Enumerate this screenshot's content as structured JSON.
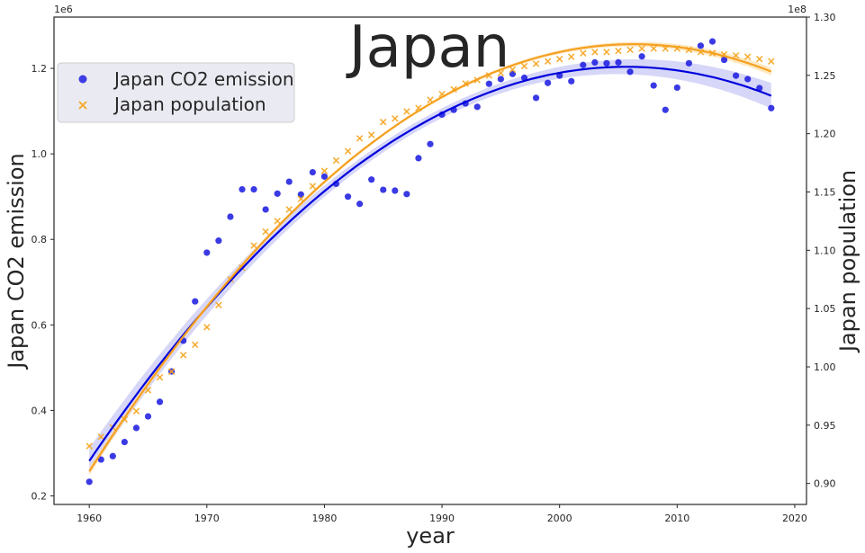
{
  "chart_data": {
    "type": "scatter",
    "title": "Japan",
    "xlabel": "year",
    "ylabel_left": "Japan  CO2 emission",
    "ylabel_right": "Japan  population",
    "left_multiplier": "1e6",
    "right_multiplier": "1e8",
    "xlim": [
      1957,
      2021
    ],
    "ylim_left": [
      0.18,
      1.32
    ],
    "ylim_right": [
      0.882,
      1.3
    ],
    "x_ticks": [
      1960,
      1970,
      1980,
      1990,
      2000,
      2010,
      2020
    ],
    "y_left_ticks": [
      0.2,
      0.4,
      0.6,
      0.8,
      1.0,
      1.2
    ],
    "y_right_ticks": [
      0.9,
      0.95,
      1.0,
      1.05,
      1.1,
      1.15,
      1.2,
      1.25,
      1.3
    ],
    "grid": false,
    "legend_position": "upper-left",
    "years": [
      1960,
      1961,
      1962,
      1963,
      1964,
      1965,
      1966,
      1967,
      1968,
      1969,
      1970,
      1971,
      1972,
      1973,
      1974,
      1975,
      1976,
      1977,
      1978,
      1979,
      1980,
      1981,
      1982,
      1983,
      1984,
      1985,
      1986,
      1987,
      1988,
      1989,
      1990,
      1991,
      1992,
      1993,
      1994,
      1995,
      1996,
      1997,
      1998,
      1999,
      2000,
      2001,
      2002,
      2003,
      2004,
      2005,
      2006,
      2007,
      2008,
      2009,
      2010,
      2011,
      2012,
      2013,
      2014,
      2015,
      2016,
      2017,
      2018
    ],
    "series": [
      {
        "name": "Japan  CO2 emission",
        "axis": "left",
        "marker": "circle",
        "color": "#1f1fe0",
        "fit_color": "#0000dd",
        "band_color": "#c8c8f5",
        "values": [
          0.233,
          0.285,
          0.293,
          0.326,
          0.359,
          0.386,
          0.42,
          0.491,
          0.563,
          0.655,
          0.769,
          0.797,
          0.853,
          0.917,
          0.917,
          0.87,
          0.907,
          0.935,
          0.905,
          0.957,
          0.947,
          0.93,
          0.9,
          0.883,
          0.94,
          0.916,
          0.914,
          0.906,
          0.99,
          1.023,
          1.092,
          1.103,
          1.118,
          1.11,
          1.164,
          1.175,
          1.187,
          1.178,
          1.131,
          1.166,
          1.183,
          1.17,
          1.208,
          1.214,
          1.212,
          1.214,
          1.192,
          1.228,
          1.16,
          1.103,
          1.155,
          1.212,
          1.253,
          1.263,
          1.22,
          1.183,
          1.175,
          1.154,
          1.107
        ]
      },
      {
        "name": "Japan  population",
        "axis": "right",
        "marker": "x",
        "color": "#f5a623",
        "fit_color": "#f5a020",
        "band_color": "#fde2b0",
        "values": [
          0.932,
          0.94,
          0.948,
          0.955,
          0.962,
          0.98,
          0.991,
          0.996,
          1.01,
          1.019,
          1.034,
          1.053,
          1.075,
          1.085,
          1.104,
          1.116,
          1.125,
          1.135,
          1.144,
          1.155,
          1.168,
          1.177,
          1.185,
          1.196,
          1.199,
          1.21,
          1.213,
          1.219,
          1.222,
          1.229,
          1.234,
          1.238,
          1.243,
          1.246,
          1.25,
          1.252,
          1.255,
          1.258,
          1.26,
          1.262,
          1.264,
          1.266,
          1.269,
          1.27,
          1.27,
          1.271,
          1.272,
          1.273,
          1.273,
          1.273,
          1.273,
          1.272,
          1.27,
          1.269,
          1.268,
          1.267,
          1.266,
          1.264,
          1.262
        ]
      }
    ]
  }
}
